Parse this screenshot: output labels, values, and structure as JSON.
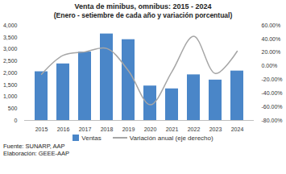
{
  "chart_data": {
    "type": "bar",
    "title": "Venta de minibus, omnibus: 2015 - 2024",
    "subtitle": "(Enero - setiembre de cada año y variación porcentual)",
    "categories": [
      "2015",
      "2016",
      "2017",
      "2018",
      "2019",
      "2020",
      "2021",
      "2022",
      "2023",
      "2024"
    ],
    "series": [
      {
        "name": "Ventas",
        "type": "bar",
        "color": "#4a86c8",
        "values": [
          2050,
          2380,
          2880,
          3640,
          3400,
          1450,
          1330,
          1920,
          1700,
          2080
        ]
      },
      {
        "name": "Variación anual (eje derecho)",
        "type": "line",
        "axis": "y2",
        "color": "#a6a6a6",
        "values": [
          -12,
          16,
          21,
          26,
          -7,
          -57,
          -8,
          44,
          -11,
          22
        ]
      }
    ],
    "ylim": [
      0,
      4000
    ],
    "yticks": [
      0,
      500,
      {
        "value": 1000,
        "label": "1,000"
      },
      {
        "value": 1500,
        "label": "1,500"
      },
      {
        "value": 2000,
        "label": "2,000"
      },
      {
        "value": 2500,
        "label": "2,500"
      },
      {
        "value": 3000,
        "label": "3,000"
      },
      {
        "value": 3500,
        "label": "3,500"
      },
      {
        "value": 4000,
        "label": "4,000"
      }
    ],
    "y2lim": [
      -80,
      60
    ],
    "y2ticks": [
      {
        "value": -80,
        "label": "-80.00%"
      },
      {
        "value": -60,
        "label": "-60.00%"
      },
      {
        "value": -40,
        "label": "-40.00%"
      },
      {
        "value": -20,
        "label": "-20.00%"
      },
      {
        "value": 0,
        "label": "0.00%"
      },
      {
        "value": 20,
        "label": "20.00%"
      },
      {
        "value": 40,
        "label": "40.00%"
      },
      {
        "value": 60,
        "label": "60.00%"
      }
    ],
    "grid": false,
    "legend": "bottom",
    "source": [
      "Fuente: SUNARP, AAP",
      "Elaboración: GEEE-AAP"
    ]
  }
}
